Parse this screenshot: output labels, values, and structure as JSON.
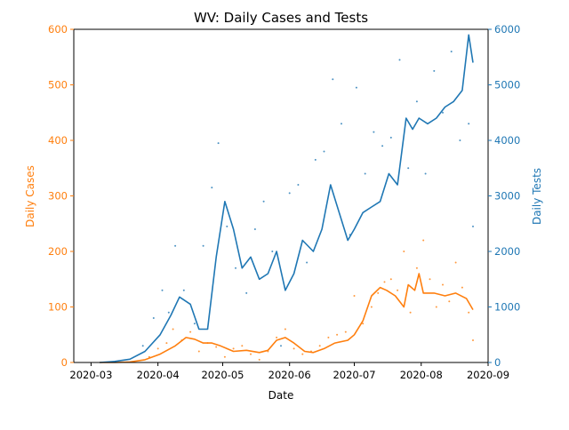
{
  "chart_data": {
    "type": "line",
    "title": "WV: Daily Cases and Tests",
    "xlabel": "Date",
    "ylabel_left": "Daily Cases",
    "ylabel_right": "Daily Tests",
    "xlim": [
      "2020-02-22",
      "2020-09-01"
    ],
    "ylim_left": [
      0,
      600
    ],
    "ylim_right": [
      0,
      6000
    ],
    "x_ticks": [
      "2020-03",
      "2020-04",
      "2020-05",
      "2020-06",
      "2020-07",
      "2020-08",
      "2020-09"
    ],
    "y_ticks_left": [
      0,
      100,
      200,
      300,
      400,
      500,
      600
    ],
    "y_ticks_right": [
      0,
      1000,
      2000,
      3000,
      4000,
      5000,
      6000
    ],
    "grid": false,
    "colors": {
      "cases": "#ff7f0e",
      "tests": "#1f77b4",
      "axis": "#000000"
    },
    "series": [
      {
        "axis": "left",
        "style": "line",
        "x": [
          "2020-03-05",
          "2020-03-12",
          "2020-03-19",
          "2020-03-26",
          "2020-04-02",
          "2020-04-09",
          "2020-04-14",
          "2020-04-18",
          "2020-04-22",
          "2020-04-26",
          "2020-04-30",
          "2020-05-06",
          "2020-05-12",
          "2020-05-18",
          "2020-05-22",
          "2020-05-26",
          "2020-05-30",
          "2020-06-03",
          "2020-06-08",
          "2020-06-12",
          "2020-06-17",
          "2020-06-22",
          "2020-06-28",
          "2020-07-01",
          "2020-07-05",
          "2020-07-09",
          "2020-07-13",
          "2020-07-16",
          "2020-07-20",
          "2020-07-24",
          "2020-07-26",
          "2020-07-29",
          "2020-07-31",
          "2020-08-02",
          "2020-08-07",
          "2020-08-12",
          "2020-08-17",
          "2020-08-22",
          "2020-08-25"
        ],
        "values": [
          0,
          0,
          1,
          5,
          15,
          30,
          45,
          42,
          35,
          35,
          30,
          20,
          22,
          18,
          22,
          40,
          45,
          35,
          20,
          18,
          25,
          35,
          40,
          50,
          75,
          120,
          135,
          130,
          120,
          100,
          140,
          130,
          160,
          125,
          125,
          120,
          125,
          115,
          95
        ]
      },
      {
        "axis": "right",
        "style": "line",
        "x": [
          "2020-03-05",
          "2020-03-12",
          "2020-03-19",
          "2020-03-26",
          "2020-04-02",
          "2020-04-07",
          "2020-04-11",
          "2020-04-16",
          "2020-04-20",
          "2020-04-24",
          "2020-04-28",
          "2020-05-02",
          "2020-05-06",
          "2020-05-10",
          "2020-05-14",
          "2020-05-18",
          "2020-05-22",
          "2020-05-26",
          "2020-05-30",
          "2020-06-03",
          "2020-06-07",
          "2020-06-12",
          "2020-06-16",
          "2020-06-20",
          "2020-06-24",
          "2020-06-28",
          "2020-07-01",
          "2020-07-05",
          "2020-07-09",
          "2020-07-13",
          "2020-07-17",
          "2020-07-21",
          "2020-07-25",
          "2020-07-28",
          "2020-07-31",
          "2020-08-04",
          "2020-08-08",
          "2020-08-12",
          "2020-08-16",
          "2020-08-20",
          "2020-08-23",
          "2020-08-25"
        ],
        "values": [
          0,
          20,
          60,
          200,
          500,
          850,
          1180,
          1050,
          600,
          600,
          1900,
          2900,
          2400,
          1700,
          1900,
          1500,
          1600,
          2000,
          1300,
          1600,
          2200,
          2000,
          2400,
          3200,
          2700,
          2200,
          2400,
          2700,
          2800,
          2900,
          3400,
          3200,
          4400,
          4200,
          4400,
          4300,
          4400,
          4600,
          4700,
          4900,
          5900,
          5400
        ]
      },
      {
        "axis": "left",
        "style": "scatter",
        "x": [
          "2020-03-28",
          "2020-04-01",
          "2020-04-05",
          "2020-04-08",
          "2020-04-12",
          "2020-04-16",
          "2020-04-20",
          "2020-04-24",
          "2020-04-28",
          "2020-05-02",
          "2020-05-06",
          "2020-05-10",
          "2020-05-14",
          "2020-05-18",
          "2020-05-22",
          "2020-05-26",
          "2020-05-30",
          "2020-06-03",
          "2020-06-07",
          "2020-06-11",
          "2020-06-15",
          "2020-06-19",
          "2020-06-23",
          "2020-06-27",
          "2020-07-01",
          "2020-07-05",
          "2020-07-09",
          "2020-07-12",
          "2020-07-15",
          "2020-07-18",
          "2020-07-21",
          "2020-07-24",
          "2020-07-27",
          "2020-07-30",
          "2020-08-02",
          "2020-08-05",
          "2020-08-08",
          "2020-08-11",
          "2020-08-14",
          "2020-08-17",
          "2020-08-20",
          "2020-08-23",
          "2020-08-25"
        ],
        "values": [
          10,
          25,
          35,
          60,
          40,
          55,
          20,
          35,
          28,
          10,
          25,
          30,
          15,
          5,
          20,
          45,
          60,
          25,
          15,
          20,
          30,
          45,
          50,
          55,
          120,
          70,
          100,
          125,
          145,
          150,
          130,
          200,
          90,
          170,
          220,
          150,
          100,
          140,
          110,
          180,
          135,
          90,
          40
        ]
      },
      {
        "axis": "right",
        "style": "scatter",
        "x": [
          "2020-03-25",
          "2020-03-30",
          "2020-04-03",
          "2020-04-06",
          "2020-04-09",
          "2020-04-13",
          "2020-04-18",
          "2020-04-22",
          "2020-04-26",
          "2020-04-29",
          "2020-05-03",
          "2020-05-07",
          "2020-05-12",
          "2020-05-16",
          "2020-05-20",
          "2020-05-24",
          "2020-05-28",
          "2020-06-01",
          "2020-06-05",
          "2020-06-09",
          "2020-06-13",
          "2020-06-17",
          "2020-06-21",
          "2020-06-25",
          "2020-06-29",
          "2020-07-02",
          "2020-07-06",
          "2020-07-10",
          "2020-07-14",
          "2020-07-18",
          "2020-07-22",
          "2020-07-26",
          "2020-07-30",
          "2020-08-03",
          "2020-08-07",
          "2020-08-11",
          "2020-08-15",
          "2020-08-19",
          "2020-08-23",
          "2020-08-25"
        ],
        "values": [
          300,
          800,
          1300,
          900,
          2100,
          1300,
          700,
          2100,
          3150,
          3950,
          2450,
          1700,
          1250,
          2400,
          2900,
          2000,
          300,
          3050,
          3200,
          1800,
          3650,
          3800,
          5100,
          4300,
          2300,
          4950,
          3400,
          4150,
          3900,
          4050,
          5450,
          3500,
          4700,
          3400,
          5250,
          4500,
          5600,
          4000,
          4300,
          2450
        ]
      }
    ]
  }
}
